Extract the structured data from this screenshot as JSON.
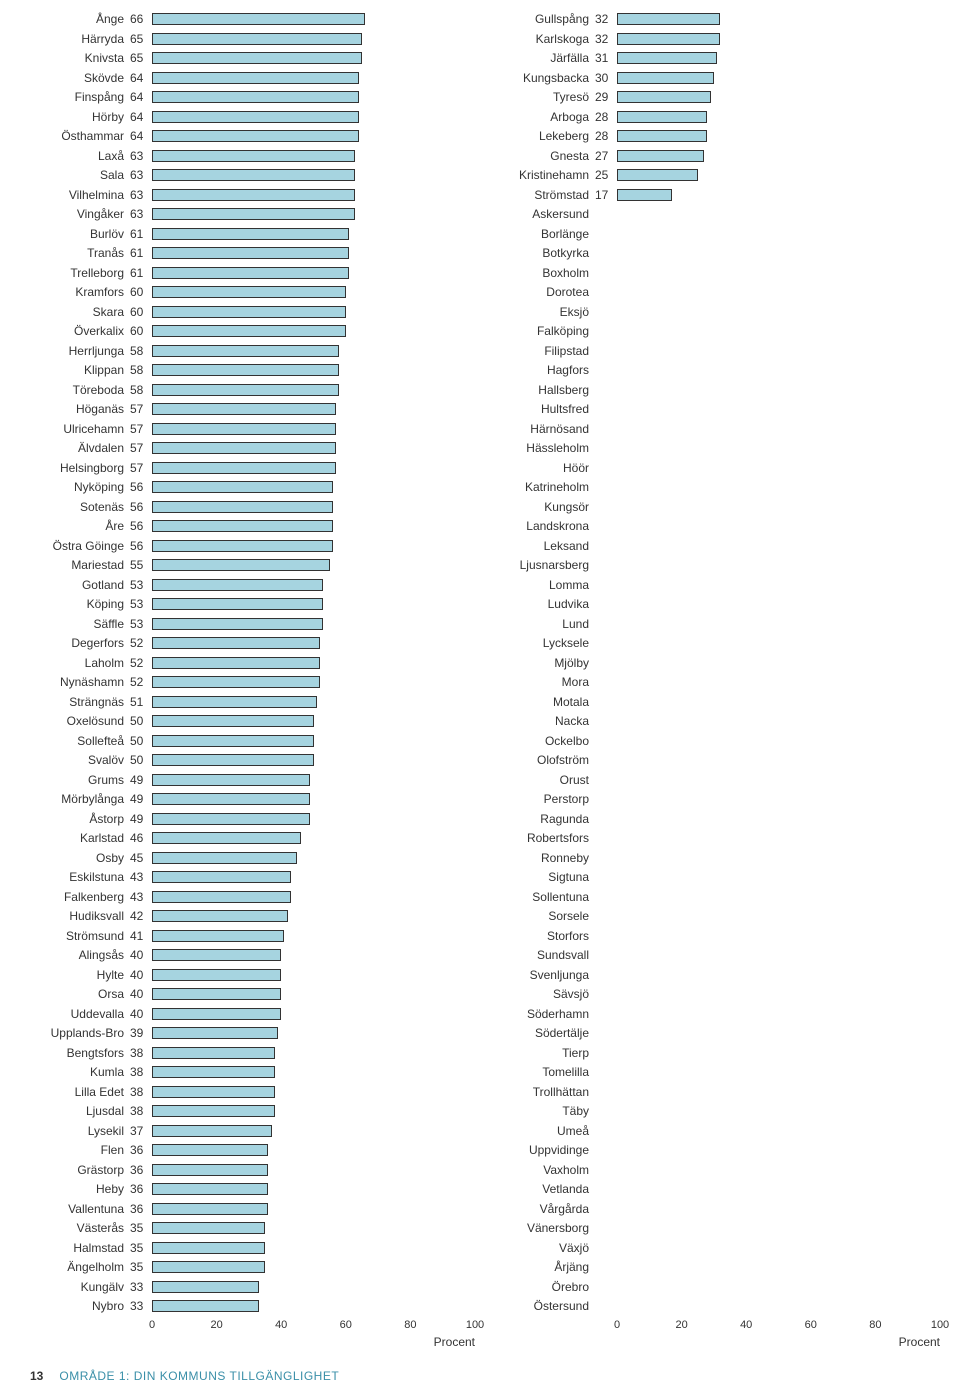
{
  "chart": {
    "type": "bar",
    "bar_fill": "#a6d4e0",
    "bar_stroke": "#333333",
    "background": "#ffffff",
    "xlim": [
      0,
      100
    ],
    "xticks": [
      0,
      20,
      40,
      60,
      80,
      100
    ],
    "xlabel": "Procent"
  },
  "left": [
    {
      "name": "Ånge",
      "value": 66
    },
    {
      "name": "Härryda",
      "value": 65
    },
    {
      "name": "Knivsta",
      "value": 65
    },
    {
      "name": "Skövde",
      "value": 64
    },
    {
      "name": "Finspång",
      "value": 64
    },
    {
      "name": "Hörby",
      "value": 64
    },
    {
      "name": "Östhammar",
      "value": 64
    },
    {
      "name": "Laxå",
      "value": 63
    },
    {
      "name": "Sala",
      "value": 63
    },
    {
      "name": "Vilhelmina",
      "value": 63
    },
    {
      "name": "Vingåker",
      "value": 63
    },
    {
      "name": "Burlöv",
      "value": 61
    },
    {
      "name": "Tranås",
      "value": 61
    },
    {
      "name": "Trelleborg",
      "value": 61
    },
    {
      "name": "Kramfors",
      "value": 60
    },
    {
      "name": "Skara",
      "value": 60
    },
    {
      "name": "Överkalix",
      "value": 60
    },
    {
      "name": "Herrljunga",
      "value": 58
    },
    {
      "name": "Klippan",
      "value": 58
    },
    {
      "name": "Töreboda",
      "value": 58
    },
    {
      "name": "Höganäs",
      "value": 57
    },
    {
      "name": "Ulricehamn",
      "value": 57
    },
    {
      "name": "Älvdalen",
      "value": 57
    },
    {
      "name": "Helsingborg",
      "value": 57
    },
    {
      "name": "Nyköping",
      "value": 56
    },
    {
      "name": "Sotenäs",
      "value": 56
    },
    {
      "name": "Åre",
      "value": 56
    },
    {
      "name": "Östra Göinge",
      "value": 56
    },
    {
      "name": "Mariestad",
      "value": 55
    },
    {
      "name": "Gotland",
      "value": 53
    },
    {
      "name": "Köping",
      "value": 53
    },
    {
      "name": "Säffle",
      "value": 53
    },
    {
      "name": "Degerfors",
      "value": 52
    },
    {
      "name": "Laholm",
      "value": 52
    },
    {
      "name": "Nynäshamn",
      "value": 52
    },
    {
      "name": "Strängnäs",
      "value": 51
    },
    {
      "name": "Oxelösund",
      "value": 50
    },
    {
      "name": "Sollefteå",
      "value": 50
    },
    {
      "name": "Svalöv",
      "value": 50
    },
    {
      "name": "Grums",
      "value": 49
    },
    {
      "name": "Mörbylånga",
      "value": 49
    },
    {
      "name": "Åstorp",
      "value": 49
    },
    {
      "name": "Karlstad",
      "value": 46
    },
    {
      "name": "Osby",
      "value": 45
    },
    {
      "name": "Eskilstuna",
      "value": 43
    },
    {
      "name": "Falkenberg",
      "value": 43
    },
    {
      "name": "Hudiksvall",
      "value": 42
    },
    {
      "name": "Strömsund",
      "value": 41
    },
    {
      "name": "Alingsås",
      "value": 40
    },
    {
      "name": "Hylte",
      "value": 40
    },
    {
      "name": "Orsa",
      "value": 40
    },
    {
      "name": "Uddevalla",
      "value": 40
    },
    {
      "name": "Upplands-Bro",
      "value": 39
    },
    {
      "name": "Bengtsfors",
      "value": 38
    },
    {
      "name": "Kumla",
      "value": 38
    },
    {
      "name": "Lilla Edet",
      "value": 38
    },
    {
      "name": "Ljusdal",
      "value": 38
    },
    {
      "name": "Lysekil",
      "value": 37
    },
    {
      "name": "Flen",
      "value": 36
    },
    {
      "name": "Grästorp",
      "value": 36
    },
    {
      "name": "Heby",
      "value": 36
    },
    {
      "name": "Vallentuna",
      "value": 36
    },
    {
      "name": "Västerås",
      "value": 35
    },
    {
      "name": "Halmstad",
      "value": 35
    },
    {
      "name": "Ängelholm",
      "value": 35
    },
    {
      "name": "Kungälv",
      "value": 33
    },
    {
      "name": "Nybro",
      "value": 33
    }
  ],
  "right": [
    {
      "name": "Gullspång",
      "value": 32
    },
    {
      "name": "Karlskoga",
      "value": 32
    },
    {
      "name": "Järfälla",
      "value": 31
    },
    {
      "name": "Kungsbacka",
      "value": 30
    },
    {
      "name": "Tyresö",
      "value": 29
    },
    {
      "name": "Arboga",
      "value": 28
    },
    {
      "name": "Lekeberg",
      "value": 28
    },
    {
      "name": "Gnesta",
      "value": 27
    },
    {
      "name": "Kristinehamn",
      "value": 25
    },
    {
      "name": "Strömstad",
      "value": 17
    },
    {
      "name": "Askersund",
      "value": null
    },
    {
      "name": "Borlänge",
      "value": null
    },
    {
      "name": "Botkyrka",
      "value": null
    },
    {
      "name": "Boxholm",
      "value": null
    },
    {
      "name": "Dorotea",
      "value": null
    },
    {
      "name": "Eksjö",
      "value": null
    },
    {
      "name": "Falköping",
      "value": null
    },
    {
      "name": "Filipstad",
      "value": null
    },
    {
      "name": "Hagfors",
      "value": null
    },
    {
      "name": "Hallsberg",
      "value": null
    },
    {
      "name": "Hultsfred",
      "value": null
    },
    {
      "name": "Härnösand",
      "value": null
    },
    {
      "name": "Hässleholm",
      "value": null
    },
    {
      "name": "Höör",
      "value": null
    },
    {
      "name": "Katrineholm",
      "value": null
    },
    {
      "name": "Kungsör",
      "value": null
    },
    {
      "name": "Landskrona",
      "value": null
    },
    {
      "name": "Leksand",
      "value": null
    },
    {
      "name": "Ljusnarsberg",
      "value": null
    },
    {
      "name": "Lomma",
      "value": null
    },
    {
      "name": "Ludvika",
      "value": null
    },
    {
      "name": "Lund",
      "value": null
    },
    {
      "name": "Lycksele",
      "value": null
    },
    {
      "name": "Mjölby",
      "value": null
    },
    {
      "name": "Mora",
      "value": null
    },
    {
      "name": "Motala",
      "value": null
    },
    {
      "name": "Nacka",
      "value": null
    },
    {
      "name": "Ockelbo",
      "value": null
    },
    {
      "name": "Olofström",
      "value": null
    },
    {
      "name": "Orust",
      "value": null
    },
    {
      "name": "Perstorp",
      "value": null
    },
    {
      "name": "Ragunda",
      "value": null
    },
    {
      "name": "Robertsfors",
      "value": null
    },
    {
      "name": "Ronneby",
      "value": null
    },
    {
      "name": "Sigtuna",
      "value": null
    },
    {
      "name": "Sollentuna",
      "value": null
    },
    {
      "name": "Sorsele",
      "value": null
    },
    {
      "name": "Storfors",
      "value": null
    },
    {
      "name": "Sundsvall",
      "value": null
    },
    {
      "name": "Svenljunga",
      "value": null
    },
    {
      "name": "Sävsjö",
      "value": null
    },
    {
      "name": "Söderhamn",
      "value": null
    },
    {
      "name": "Södertälje",
      "value": null
    },
    {
      "name": "Tierp",
      "value": null
    },
    {
      "name": "Tomelilla",
      "value": null
    },
    {
      "name": "Trollhättan",
      "value": null
    },
    {
      "name": "Täby",
      "value": null
    },
    {
      "name": "Umeå",
      "value": null
    },
    {
      "name": "Uppvidinge",
      "value": null
    },
    {
      "name": "Vaxholm",
      "value": null
    },
    {
      "name": "Vetlanda",
      "value": null
    },
    {
      "name": "Vårgårda",
      "value": null
    },
    {
      "name": "Vänersborg",
      "value": null
    },
    {
      "name": "Växjö",
      "value": null
    },
    {
      "name": "Årjäng",
      "value": null
    },
    {
      "name": "Örebro",
      "value": null
    },
    {
      "name": "Östersund",
      "value": null
    }
  ],
  "footer": {
    "page": "13",
    "title": "OMRÅDE 1: DIN KOMMUNS TILLGÄNGLIGHET",
    "title_color": "#3a8fa8"
  }
}
